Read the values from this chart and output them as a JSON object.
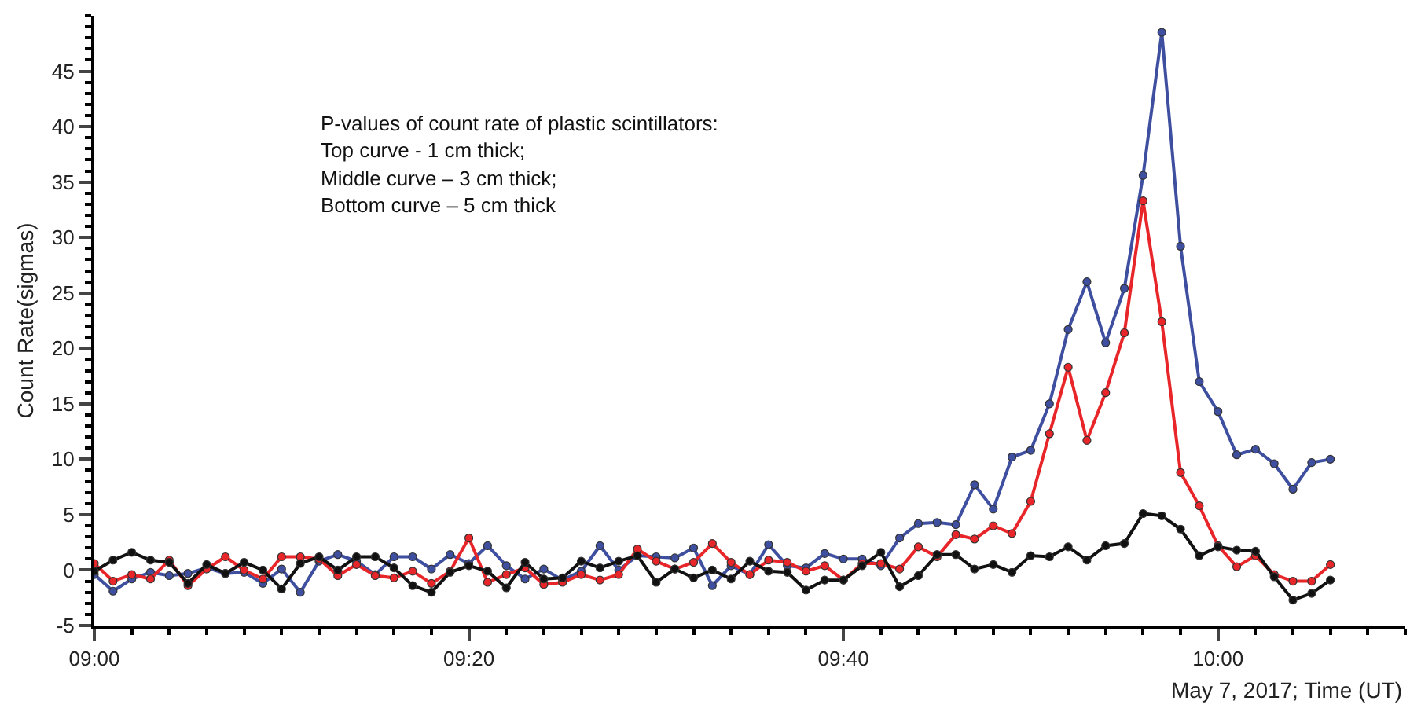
{
  "chart_data": {
    "type": "line",
    "ylabel": "Count Rate(sigmas)",
    "xlabel": "May 7, 2017; Time (UT)",
    "annotations": [
      "P-values of count rate of plastic scintillators:",
      "Top curve - 1 cm thick;",
      "Middle curve – 3 cm thick;",
      "Bottom curve – 5 cm thick"
    ],
    "x": [
      "2017-05-07T09:00",
      "2017-05-07T09:01",
      "2017-05-07T09:02",
      "2017-05-07T09:03",
      "2017-05-07T09:04",
      "2017-05-07T09:05",
      "2017-05-07T09:06",
      "2017-05-07T09:07",
      "2017-05-07T09:08",
      "2017-05-07T09:09",
      "2017-05-07T09:10",
      "2017-05-07T09:11",
      "2017-05-07T09:12",
      "2017-05-07T09:13",
      "2017-05-07T09:14",
      "2017-05-07T09:15",
      "2017-05-07T09:16",
      "2017-05-07T09:17",
      "2017-05-07T09:18",
      "2017-05-07T09:19",
      "2017-05-07T09:20",
      "2017-05-07T09:21",
      "2017-05-07T09:22",
      "2017-05-07T09:23",
      "2017-05-07T09:24",
      "2017-05-07T09:25",
      "2017-05-07T09:26",
      "2017-05-07T09:27",
      "2017-05-07T09:28",
      "2017-05-07T09:29",
      "2017-05-07T09:30",
      "2017-05-07T09:31",
      "2017-05-07T09:32",
      "2017-05-07T09:33",
      "2017-05-07T09:34",
      "2017-05-07T09:35",
      "2017-05-07T09:36",
      "2017-05-07T09:37",
      "2017-05-07T09:38",
      "2017-05-07T09:39",
      "2017-05-07T09:40",
      "2017-05-07T09:41",
      "2017-05-07T09:42",
      "2017-05-07T09:43",
      "2017-05-07T09:44",
      "2017-05-07T09:45",
      "2017-05-07T09:46",
      "2017-05-07T09:47",
      "2017-05-07T09:48",
      "2017-05-07T09:49",
      "2017-05-07T09:50",
      "2017-05-07T09:51",
      "2017-05-07T09:52",
      "2017-05-07T09:53",
      "2017-05-07T09:54",
      "2017-05-07T09:55",
      "2017-05-07T09:56",
      "2017-05-07T09:57",
      "2017-05-07T09:58",
      "2017-05-07T09:59",
      "2017-05-07T10:00",
      "2017-05-07T10:01",
      "2017-05-07T10:02",
      "2017-05-07T10:03",
      "2017-05-07T10:04",
      "2017-05-07T10:05",
      "2017-05-07T10:06"
    ],
    "series": [
      {
        "color": "#3f4fa0",
        "values": [
          -0.4,
          -1.9,
          -0.8,
          -0.2,
          -0.5,
          -0.3,
          0.2,
          -0.3,
          -0.2,
          -1.2,
          0.1,
          -2.0,
          0.8,
          1.4,
          0.8,
          -0.4,
          1.2,
          1.2,
          0.1,
          1.4,
          0.6,
          2.2,
          0.4,
          -0.8,
          0.1,
          -0.9,
          -0.1,
          2.2,
          0.0,
          1.3,
          1.2,
          1.1,
          2.0,
          -1.4,
          0.4,
          -0.4,
          2.3,
          0.4,
          0.2,
          1.5,
          1.0,
          1.0,
          0.4,
          2.9,
          4.2,
          4.3,
          4.1,
          7.7,
          5.5,
          10.2,
          10.8,
          15.0,
          21.7,
          26.0,
          20.5,
          25.4,
          35.6,
          48.5,
          29.2,
          17.0,
          14.3,
          10.4,
          10.9,
          9.6,
          7.3,
          9.7,
          10.0
        ]
      },
      {
        "color": "#e8262a",
        "values": [
          0.6,
          -1.0,
          -0.4,
          -0.8,
          0.9,
          -1.4,
          0.1,
          1.2,
          0.0,
          -0.8,
          1.2,
          1.2,
          1.0,
          -0.5,
          0.5,
          -0.5,
          -0.7,
          -0.1,
          -1.2,
          -0.1,
          2.9,
          -1.1,
          -0.4,
          0.2,
          -1.3,
          -1.1,
          -0.4,
          -0.9,
          -0.4,
          1.9,
          0.8,
          0.1,
          0.7,
          2.4,
          0.7,
          -0.4,
          0.9,
          0.7,
          -0.1,
          0.4,
          -0.9,
          0.6,
          0.6,
          0.1,
          2.1,
          1.2,
          3.2,
          2.8,
          4.0,
          3.3,
          6.2,
          12.3,
          18.3,
          11.7,
          16.0,
          21.4,
          33.3,
          22.4,
          8.8,
          5.8,
          2.2,
          0.3,
          1.3,
          -0.4,
          -1.0,
          -1.0,
          0.5
        ]
      },
      {
        "color": "#111111",
        "values": [
          -0.1,
          0.9,
          1.6,
          0.9,
          0.7,
          -1.2,
          0.5,
          -0.3,
          0.7,
          0.0,
          -1.7,
          0.6,
          1.2,
          0.0,
          1.2,
          1.2,
          0.2,
          -1.4,
          -2.0,
          -0.2,
          0.4,
          -0.1,
          -1.6,
          0.7,
          -0.8,
          -0.7,
          0.8,
          0.2,
          0.8,
          1.3,
          -1.1,
          0.1,
          -0.7,
          0.0,
          -0.8,
          0.8,
          -0.1,
          -0.2,
          -1.8,
          -0.9,
          -0.9,
          0.4,
          1.6,
          -1.5,
          -0.5,
          1.4,
          1.4,
          0.1,
          0.5,
          -0.2,
          1.3,
          1.2,
          2.1,
          0.9,
          2.2,
          2.4,
          5.1,
          4.9,
          3.7,
          1.3,
          2.1,
          1.8,
          1.7,
          -0.6,
          -2.7,
          -2.1,
          -0.9
        ]
      }
    ],
    "xlim": [
      "2017-05-07T09:00",
      "2017-05-07T10:10"
    ],
    "xticks": [
      {
        "value": "2017-05-07T09:00",
        "label": "09:00"
      },
      {
        "value": "2017-05-07T09:20",
        "label": "09:20"
      },
      {
        "value": "2017-05-07T09:40",
        "label": "09:40"
      },
      {
        "value": "2017-05-07T10:00",
        "label": "10:00"
      }
    ],
    "ylim": [
      -5,
      50
    ],
    "yticks": [
      -5,
      0,
      5,
      10,
      15,
      20,
      25,
      30,
      35,
      40,
      45
    ],
    "marker": "circle",
    "line_style": "solid"
  }
}
